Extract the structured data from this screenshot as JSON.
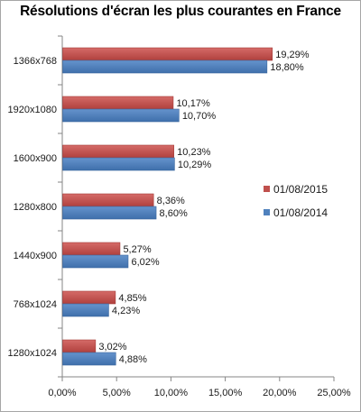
{
  "chart_data": {
    "type": "bar",
    "orientation": "horizontal",
    "title": "Résolutions d'écran les plus courantes en France",
    "categories": [
      "1366x768",
      "1920x1080",
      "1600x900",
      "1280x800",
      "1440x900",
      "768x1024",
      "1280x1024"
    ],
    "series": [
      {
        "name": "01/08/2015",
        "color": "#c0504d",
        "values": [
          19.29,
          10.17,
          10.23,
          8.36,
          5.27,
          4.85,
          3.02
        ],
        "labels": [
          "19,29%",
          "10,17%",
          "10,23%",
          "8,36%",
          "5,27%",
          "4,85%",
          "3,02%"
        ]
      },
      {
        "name": "01/08/2014",
        "color": "#4f81bd",
        "values": [
          18.8,
          10.7,
          10.29,
          8.6,
          6.02,
          4.23,
          4.88
        ],
        "labels": [
          "18,80%",
          "10,70%",
          "10,29%",
          "8,60%",
          "6,02%",
          "4,23%",
          "4,88%"
        ]
      }
    ],
    "xlim": [
      0,
      25
    ],
    "xticks": [
      0,
      5,
      10,
      15,
      20,
      25
    ],
    "xtick_labels": [
      "0,00%",
      "5,00%",
      "10,00%",
      "15,00%",
      "20,00%",
      "25,00%"
    ],
    "grid": false,
    "legend_position": "right"
  }
}
